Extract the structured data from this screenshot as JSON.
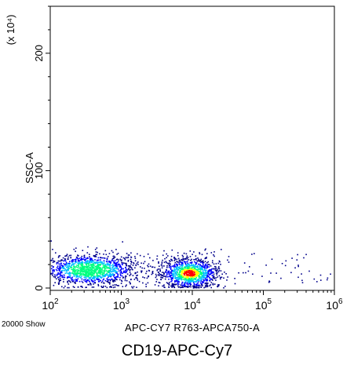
{
  "chart_data": {
    "type": "scatter",
    "title": "",
    "xlabel": "APC-CY7 R763-APCA750-A",
    "ylabel": "SSC-A",
    "y_multiplier": "(x 10⁴)",
    "x_scale": "log",
    "xlim": [
      100,
      1000000
    ],
    "ylim": [
      -2,
      240
    ],
    "x_ticks": [
      {
        "value": 100,
        "base": "10",
        "exp": "2"
      },
      {
        "value": 1000,
        "base": "10",
        "exp": "3"
      },
      {
        "value": 10000,
        "base": "10",
        "exp": "4"
      },
      {
        "value": 100000,
        "base": "10",
        "exp": "5"
      },
      {
        "value": 1000000,
        "base": "10",
        "exp": "6"
      }
    ],
    "y_ticks": [
      {
        "value": 0,
        "label": "0"
      },
      {
        "value": 100,
        "label": "100"
      },
      {
        "value": 200,
        "label": "200"
      }
    ],
    "populations": [
      {
        "x_center": 350,
        "y_center": 16,
        "x_spread_log": 0.35,
        "y_spread": 7,
        "share": 0.55
      },
      {
        "x_center": 9000,
        "y_center": 13,
        "x_spread_log": 0.22,
        "y_spread": 7,
        "share": 0.45
      }
    ],
    "event_count": 20000,
    "density_colors": [
      "#00008b",
      "#0000ff",
      "#00bfff",
      "#00ff7f",
      "#ffff00",
      "#ff0000"
    ]
  },
  "events_label": "20000 Show",
  "caption": "CD19-APC-Cy7"
}
